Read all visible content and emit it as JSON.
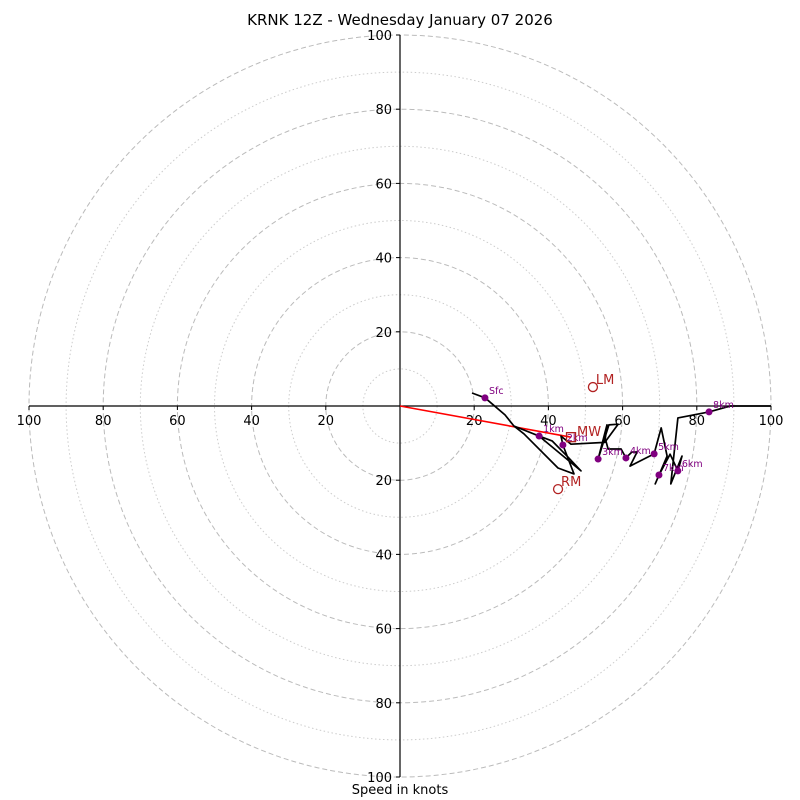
{
  "chart_data": {
    "type": "line",
    "subtype": "hodograph",
    "title": "KRNK 12Z - Wednesday January 07 2026",
    "xlabel": "Speed in knots",
    "ylabel": "",
    "xlim": [
      -100,
      100
    ],
    "ylim": [
      -100,
      100
    ],
    "grid": true,
    "ring_major": [
      20,
      40,
      60,
      80,
      100
    ],
    "ring_minor": [
      10,
      30,
      50,
      70,
      90
    ],
    "x_tick_labels": [
      "100",
      "80",
      "60",
      "40",
      "20",
      "20",
      "40",
      "60",
      "80",
      "100"
    ],
    "x_tick_values": [
      -100,
      -80,
      -60,
      -40,
      -20,
      20,
      40,
      60,
      80,
      100
    ],
    "y_tick_labels": [
      "100",
      "80",
      "60",
      "40",
      "20",
      "20",
      "40",
      "60",
      "80",
      "100"
    ],
    "y_tick_values": [
      100,
      80,
      60,
      40,
      20,
      -20,
      -40,
      -60,
      -80,
      -100
    ],
    "colors": {
      "hodograph": "#000000",
      "markers": "#800080",
      "annotations": "#b22222",
      "mean_wind_line": "#ff0000",
      "major_ring": "#bbbbbb",
      "minor_ring": "#cccccc"
    },
    "hodograph_path": {
      "u": [
        19.4,
        22.9,
        28.3,
        30.7,
        37.5,
        41.0,
        45.3,
        48.8,
        37.5,
        30.7,
        33.4,
        42.6,
        46.9,
        43.9,
        43.4,
        46.1,
        55.2,
        55.8,
        53.4,
        56.3,
        58.8,
        55.5,
        56.1,
        59.6,
        60.9,
        62.5,
        63.9,
        62.0,
        68.5,
        70.4,
        72.0,
        68.8,
        69.8,
        72.8,
        74.9,
        76.0,
        73.0,
        74.9,
        83.3,
        89.0,
        100.0
      ],
      "v": [
        3.5,
        2.2,
        -2.4,
        -5.4,
        -8.1,
        -9.4,
        -13.8,
        -17.5,
        -8.1,
        -5.4,
        -7.5,
        -16.7,
        -18.3,
        -10.5,
        -8.1,
        -10.3,
        -9.8,
        -5.1,
        -14.3,
        -5.1,
        -4.9,
        -9.4,
        -11.6,
        -11.6,
        -14.0,
        -12.4,
        -12.4,
        -16.2,
        -12.9,
        -5.9,
        -13.5,
        -21.0,
        -18.6,
        -13.0,
        -17.5,
        -13.5,
        -21.0,
        -3.2,
        -1.6,
        0.0,
        0.0
      ]
    },
    "height_markers": [
      {
        "label": "Sfc",
        "u": 22.9,
        "v": 2.2
      },
      {
        "label": "1km",
        "u": 37.5,
        "v": -8.1
      },
      {
        "label": "2km",
        "u": 43.9,
        "v": -10.5
      },
      {
        "label": "3km",
        "u": 53.4,
        "v": -14.3
      },
      {
        "label": "4km",
        "u": 60.9,
        "v": -14.0
      },
      {
        "label": "5km",
        "u": 68.5,
        "v": -12.9
      },
      {
        "label": "6km",
        "u": 74.9,
        "v": -17.5
      },
      {
        "label": "7km",
        "u": 69.8,
        "v": -18.6
      },
      {
        "label": "8km",
        "u": 83.3,
        "v": -1.6
      }
    ],
    "storm_motion": {
      "LM": {
        "label": "LM",
        "u": 52.0,
        "v": 5.1
      },
      "RM": {
        "label": "RM",
        "u": 42.6,
        "v": -22.4
      },
      "MW": {
        "label": "MW",
        "u": 46.1,
        "v": -8.4
      }
    }
  }
}
